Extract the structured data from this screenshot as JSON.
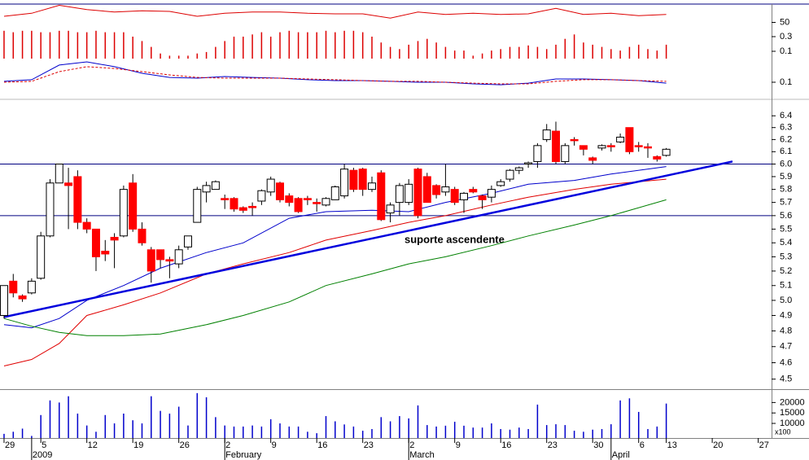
{
  "chart_data": {
    "type": "candlestick",
    "log_scale": true,
    "annotation": "suporte ascendente",
    "xlim": [
      -0.44,
      83.45
    ],
    "xticks": [
      {
        "value": 0,
        "label": "29"
      },
      {
        "value": 4,
        "label": "5"
      },
      {
        "value": 9,
        "label": "12"
      },
      {
        "value": 14,
        "label": "19"
      },
      {
        "value": 19,
        "label": "26"
      },
      {
        "value": 24,
        "label": "2"
      },
      {
        "value": 29,
        "label": "9"
      },
      {
        "value": 34,
        "label": "16"
      },
      {
        "value": 39,
        "label": "23"
      },
      {
        "value": 44,
        "label": "2"
      },
      {
        "value": 49,
        "label": "9"
      },
      {
        "value": 54,
        "label": "16"
      },
      {
        "value": 59,
        "label": "23"
      },
      {
        "value": 64,
        "label": "30"
      },
      {
        "value": 69,
        "label": "6"
      },
      {
        "value": 72,
        "label": "13"
      },
      {
        "value": 77,
        "label": "20"
      },
      {
        "value": 82,
        "label": "27"
      }
    ],
    "month_ticks": [
      {
        "value": 3,
        "label": "2009"
      },
      {
        "value": 24,
        "label": "February"
      },
      {
        "value": 44,
        "label": "March"
      },
      {
        "value": 66,
        "label": "April"
      }
    ],
    "ylim": [
      4.44,
      6.5
    ],
    "yticks": [
      6.4,
      6.3,
      6.2,
      6.1,
      {
        "value": 6,
        "label": "6.0"
      },
      5.9,
      5.8,
      5.7,
      5.6,
      5.5,
      5.4,
      5.3,
      5.2,
      5.1,
      {
        "value": 5,
        "label": "5.0"
      },
      4.9,
      4.8,
      4.7,
      4.6,
      4.5
    ],
    "up_color": "#ffffff",
    "down_color": "#ff0000",
    "x": [
      0,
      1,
      2,
      3,
      4,
      5,
      6,
      7,
      8,
      9,
      10,
      11,
      12,
      13,
      14,
      15,
      16,
      17,
      18,
      19,
      20,
      21,
      22,
      23,
      24,
      25,
      26,
      27,
      28,
      29,
      30,
      31,
      32,
      33,
      34,
      35,
      36,
      37,
      38,
      39,
      40,
      41,
      42,
      43,
      44,
      45,
      46,
      47,
      48,
      49,
      50,
      51,
      52,
      53,
      54,
      55,
      56,
      57,
      58,
      59,
      60,
      61,
      62,
      63,
      64,
      65,
      66,
      67,
      68,
      69,
      70,
      71,
      72
    ],
    "open": [
      4.9,
      5.13,
      5.03,
      5.05,
      5.15,
      5.45,
      5.85,
      5.85,
      5.9,
      5.55,
      5.5,
      5.34,
      5.44,
      5.45,
      5.85,
      5.5,
      5.35,
      5.35,
      5.28,
      5.25,
      5.37,
      5.55,
      5.78,
      5.8,
      5.73,
      5.73,
      5.66,
      5.67,
      5.71,
      5.78,
      5.85,
      5.75,
      5.73,
      5.73,
      5.7,
      5.68,
      5.72,
      5.75,
      5.95,
      5.96,
      5.8,
      5.93,
      5.62,
      5.7,
      5.7,
      5.96,
      5.9,
      5.83,
      5.78,
      5.8,
      5.72,
      5.8,
      5.75,
      5.74,
      5.83,
      5.88,
      5.95,
      6.0,
      6.02,
      6.2,
      6.27,
      6.02,
      6.2,
      6.15,
      6.05,
      6.13,
      6.15,
      6.18,
      6.3,
      6.15,
      6.14,
      6.06,
      6.07
    ],
    "close": [
      5.1,
      5.05,
      5.01,
      5.13,
      5.45,
      5.85,
      6.0,
      5.83,
      5.55,
      5.5,
      5.3,
      5.32,
      5.42,
      5.8,
      5.5,
      5.4,
      5.2,
      5.28,
      5.27,
      5.35,
      5.45,
      5.8,
      5.83,
      5.86,
      5.72,
      5.65,
      5.64,
      5.66,
      5.79,
      5.88,
      5.72,
      5.7,
      5.63,
      5.72,
      5.69,
      5.73,
      5.82,
      5.96,
      5.8,
      5.8,
      5.85,
      5.57,
      5.68,
      5.83,
      5.84,
      5.6,
      5.7,
      5.76,
      5.82,
      5.7,
      5.77,
      5.78,
      5.72,
      5.8,
      5.86,
      5.95,
      5.97,
      6.01,
      6.15,
      6.28,
      6.02,
      6.15,
      6.19,
      6.12,
      6.03,
      6.15,
      6.14,
      6.22,
      6.1,
      6.14,
      6.13,
      6.04,
      6.12
    ],
    "high": [
      5.1,
      5.18,
      5.04,
      5.15,
      5.48,
      5.88,
      6.0,
      5.97,
      5.95,
      5.58,
      5.5,
      5.42,
      5.47,
      5.83,
      5.92,
      5.55,
      5.37,
      5.35,
      5.3,
      5.38,
      5.45,
      5.82,
      5.86,
      5.87,
      5.76,
      5.74,
      5.67,
      5.7,
      5.8,
      5.9,
      5.86,
      5.77,
      5.74,
      5.75,
      5.73,
      5.74,
      5.83,
      6.0,
      5.97,
      5.97,
      5.9,
      5.95,
      5.7,
      5.85,
      5.88,
      5.97,
      5.93,
      5.84,
      6.0,
      5.82,
      5.78,
      5.82,
      5.76,
      5.83,
      5.88,
      5.96,
      5.98,
      6.02,
      6.17,
      6.33,
      6.35,
      6.17,
      6.22,
      6.15,
      6.06,
      6.16,
      6.17,
      6.25,
      6.3,
      6.18,
      6.17,
      6.07,
      6.13
    ],
    "low": [
      4.88,
      5.02,
      4.99,
      5.04,
      5.14,
      5.44,
      5.85,
      5.5,
      5.5,
      5.47,
      5.2,
      5.27,
      5.22,
      5.44,
      5.48,
      5.38,
      5.12,
      5.22,
      5.15,
      5.22,
      5.35,
      5.55,
      5.7,
      5.8,
      5.65,
      5.63,
      5.62,
      5.6,
      5.68,
      5.75,
      5.7,
      5.67,
      5.62,
      5.68,
      5.63,
      5.67,
      5.72,
      5.73,
      5.78,
      5.75,
      5.78,
      5.56,
      5.55,
      5.6,
      5.68,
      5.58,
      5.7,
      5.73,
      5.75,
      5.68,
      5.62,
      5.77,
      5.65,
      5.7,
      5.82,
      5.86,
      5.92,
      5.97,
      5.97,
      6.18,
      6.0,
      6.0,
      6.15,
      6.07,
      6.0,
      6.11,
      6.1,
      6.17,
      6.08,
      6.1,
      6.05,
      6.02,
      6.06
    ],
    "moving_averages": [
      {
        "color": "#0000cc",
        "x": [
          0,
          3,
          6,
          9,
          13,
          17,
          22,
          26,
          31,
          35,
          40,
          44,
          48,
          53,
          57,
          62,
          66,
          72
        ],
        "values": [
          4.84,
          4.82,
          4.88,
          5.0,
          5.1,
          5.22,
          5.33,
          5.4,
          5.58,
          5.63,
          5.64,
          5.63,
          5.7,
          5.77,
          5.84,
          5.87,
          5.92,
          5.98
        ]
      },
      {
        "color": "#e00000",
        "x": [
          0,
          3,
          6,
          9,
          13,
          17,
          22,
          26,
          31,
          35,
          40,
          44,
          48,
          53,
          57,
          62,
          66,
          72
        ],
        "values": [
          4.58,
          4.62,
          4.72,
          4.9,
          4.97,
          5.05,
          5.18,
          5.25,
          5.33,
          5.42,
          5.49,
          5.55,
          5.6,
          5.68,
          5.74,
          5.8,
          5.84,
          5.88
        ]
      },
      {
        "color": "#008000",
        "x": [
          0,
          3,
          6,
          9,
          13,
          17,
          22,
          26,
          31,
          35,
          40,
          44,
          48,
          53,
          57,
          62,
          66,
          72
        ],
        "values": [
          4.88,
          4.83,
          4.79,
          4.77,
          4.77,
          4.78,
          4.84,
          4.9,
          4.99,
          5.1,
          5.18,
          5.25,
          5.3,
          5.38,
          5.45,
          5.53,
          5.6,
          5.72
        ]
      }
    ],
    "levels": [
      6.0,
      5.6
    ],
    "level_color": "#000080",
    "trendline": {
      "color": "#0000dd",
      "x": [
        0,
        79.2
      ],
      "values": [
        4.89,
        6.02
      ]
    },
    "volume": {
      "color": "#0000cc",
      "unit_label": "x100",
      "ylim": [
        3000,
        26000
      ],
      "yticks": [
        20000,
        15000,
        10000
      ],
      "values": [
        5000,
        6000,
        7500,
        4000,
        14000,
        21000,
        20000,
        23000,
        14700,
        9000,
        6000,
        14000,
        10000,
        14700,
        11500,
        10000,
        23000,
        16000,
        14700,
        18000,
        9000,
        24500,
        22500,
        13000,
        9000,
        8500,
        8500,
        9000,
        8500,
        12000,
        10000,
        8500,
        8500,
        6000,
        5300,
        13500,
        11000,
        9500,
        8500,
        6500,
        7300,
        13000,
        11000,
        13500,
        12400,
        18600,
        9200,
        8500,
        8900,
        10800,
        8900,
        8000,
        8000,
        10000,
        7300,
        7000,
        8000,
        7300,
        19000,
        9200,
        9600,
        9200,
        6500,
        6000,
        7000,
        7300,
        9600,
        21000,
        22000,
        15500,
        7300,
        8500,
        19500
      ]
    },
    "oscillator": {
      "color": "#dd0000",
      "ylim": [
        40,
        80
      ],
      "yticks": [
        50
      ],
      "x": [
        0,
        3,
        6,
        9,
        12,
        15,
        18,
        21,
        24,
        27,
        30,
        33,
        36,
        39,
        42,
        45,
        48,
        51,
        54,
        57,
        60,
        63,
        66,
        69,
        72
      ],
      "values": [
        60,
        65,
        78,
        71,
        67,
        69,
        68,
        60,
        65,
        67,
        67,
        65,
        64,
        64,
        57,
        67,
        63,
        65,
        63,
        64,
        73,
        63,
        65,
        61,
        63
      ]
    },
    "histogram": {
      "color": "#dd0000",
      "ylim": [
        0,
        0.4
      ],
      "yticks": [
        0.3,
        0.1
      ],
      "values": [
        0.38,
        0.36,
        0.38,
        0.38,
        0.36,
        0.36,
        0.38,
        0.38,
        0.36,
        0.36,
        0.38,
        0.36,
        0.36,
        0.36,
        0.3,
        0.24,
        0.16,
        0.07,
        0.04,
        0.04,
        0.04,
        0.07,
        0.09,
        0.16,
        0.24,
        0.3,
        0.3,
        0.33,
        0.36,
        0.3,
        0.36,
        0.38,
        0.36,
        0.36,
        0.36,
        0.38,
        0.36,
        0.38,
        0.38,
        0.36,
        0.3,
        0.22,
        0.16,
        0.13,
        0.19,
        0.24,
        0.27,
        0.22,
        0.16,
        0.11,
        0.11,
        0.04,
        0.07,
        0.11,
        0.13,
        0.16,
        0.16,
        0.18,
        0.16,
        0.13,
        0.19,
        0.27,
        0.33,
        0.22,
        0.19,
        0.16,
        0.13,
        0.11,
        0.16,
        0.19,
        0.13,
        0.11,
        0.19
      ]
    },
    "macd": {
      "ylim": [
        0.05,
        0.25
      ],
      "yticks": [
        0.1
      ],
      "x": [
        0,
        3,
        6,
        9,
        12,
        15,
        18,
        21,
        24,
        27,
        30,
        33,
        36,
        39,
        42,
        45,
        48,
        51,
        54,
        57,
        60,
        63,
        66,
        69,
        72
      ],
      "series": [
        {
          "color": "#0000cc",
          "values": [
            0.106,
            0.117,
            0.217,
            0.239,
            0.206,
            0.161,
            0.133,
            0.128,
            0.139,
            0.133,
            0.128,
            0.117,
            0.111,
            0.111,
            0.106,
            0.1,
            0.1,
            0.089,
            0.083,
            0.094,
            0.122,
            0.122,
            0.117,
            0.111,
            0.094
          ]
        },
        {
          "color": "#dd0000",
          "dashed": true,
          "values": [
            0.1,
            0.106,
            0.172,
            0.206,
            0.194,
            0.172,
            0.15,
            0.133,
            0.128,
            0.128,
            0.128,
            0.122,
            0.117,
            0.111,
            0.106,
            0.106,
            0.1,
            0.094,
            0.089,
            0.089,
            0.106,
            0.117,
            0.117,
            0.111,
            0.106
          ]
        }
      ]
    }
  }
}
